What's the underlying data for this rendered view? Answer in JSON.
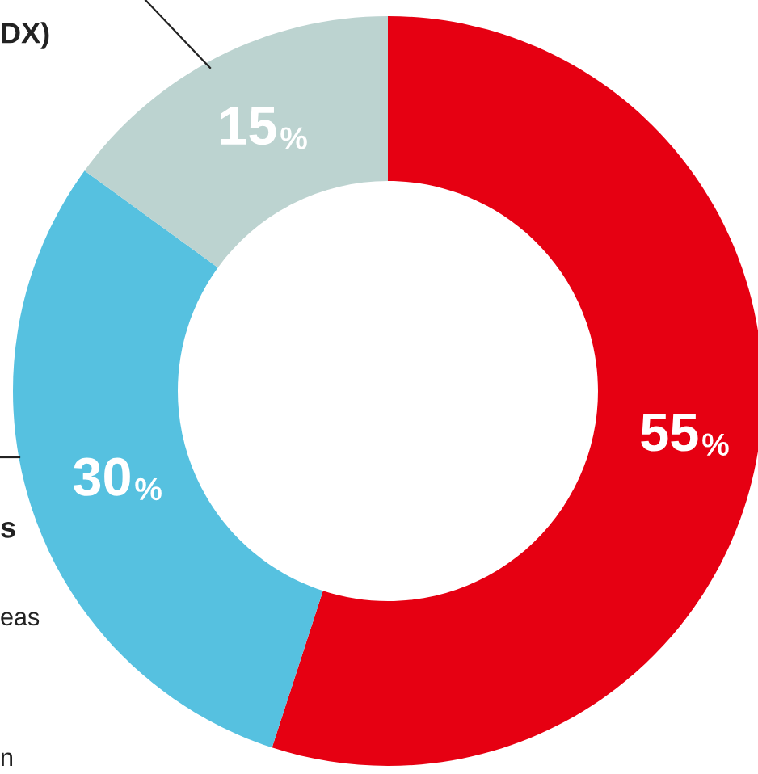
{
  "chart_data": {
    "type": "donut",
    "categories": [
      null,
      null,
      null
    ],
    "values": [
      55,
      30,
      15
    ],
    "colors": [
      "#e60012",
      "#56c1e0",
      "#bcd3d0"
    ],
    "value_labels": [
      "55%",
      "30%",
      "15%"
    ],
    "annotations": [
      "DX)",
      "s",
      "eas",
      "n"
    ]
  }
}
